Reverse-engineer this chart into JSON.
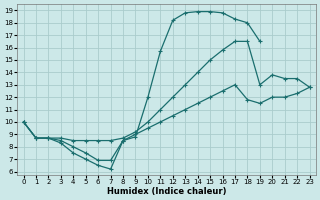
{
  "xlabel": "Humidex (Indice chaleur)",
  "bg_color": "#cce8e8",
  "grid_color": "#aacccc",
  "line_color": "#1a6e6e",
  "xlim_min": -0.5,
  "xlim_max": 23.5,
  "ylim_min": 5.7,
  "ylim_max": 19.5,
  "xticks": [
    0,
    1,
    2,
    3,
    4,
    5,
    6,
    7,
    8,
    9,
    10,
    11,
    12,
    13,
    14,
    15,
    16,
    17,
    18,
    19,
    20,
    21,
    22,
    23
  ],
  "yticks": [
    6,
    7,
    8,
    9,
    10,
    11,
    12,
    13,
    14,
    15,
    16,
    17,
    18,
    19
  ],
  "curve1_x": [
    0,
    1,
    2,
    3,
    4,
    5,
    6,
    7,
    8,
    9,
    10,
    11,
    12,
    13,
    14,
    15,
    16,
    17,
    18,
    19
  ],
  "curve1_y": [
    10.0,
    8.7,
    8.7,
    8.3,
    7.5,
    7.0,
    6.5,
    6.2,
    8.5,
    8.8,
    12.0,
    15.7,
    18.2,
    18.8,
    18.9,
    18.9,
    18.8,
    18.3,
    18.0,
    16.5
  ],
  "curve2_x": [
    0,
    1,
    2,
    3,
    4,
    5,
    6,
    7,
    8,
    9,
    10,
    11,
    12,
    13,
    14,
    15,
    16,
    17,
    18,
    19,
    20,
    21,
    22,
    23
  ],
  "curve2_y": [
    10.0,
    8.7,
    8.7,
    8.7,
    8.5,
    8.5,
    8.5,
    8.5,
    8.7,
    9.2,
    10.0,
    11.0,
    12.0,
    13.0,
    14.0,
    15.0,
    15.8,
    16.5,
    16.5,
    13.0,
    13.8,
    13.5,
    13.5,
    12.8
  ],
  "curve3_x": [
    0,
    1,
    2,
    3,
    4,
    5,
    6,
    7,
    8,
    9,
    10,
    11,
    12,
    13,
    14,
    15,
    16,
    17,
    18,
    19,
    20,
    21,
    22,
    23
  ],
  "curve3_y": [
    10.0,
    8.7,
    8.7,
    8.5,
    8.0,
    7.5,
    6.9,
    6.9,
    8.5,
    9.0,
    9.5,
    10.0,
    10.5,
    11.0,
    11.5,
    12.0,
    12.5,
    13.0,
    11.8,
    11.5,
    12.0,
    12.0,
    12.3,
    12.8
  ],
  "marker": "+",
  "markersize": 3.5,
  "linewidth": 0.9,
  "tick_fontsize": 5,
  "xlabel_fontsize": 6
}
